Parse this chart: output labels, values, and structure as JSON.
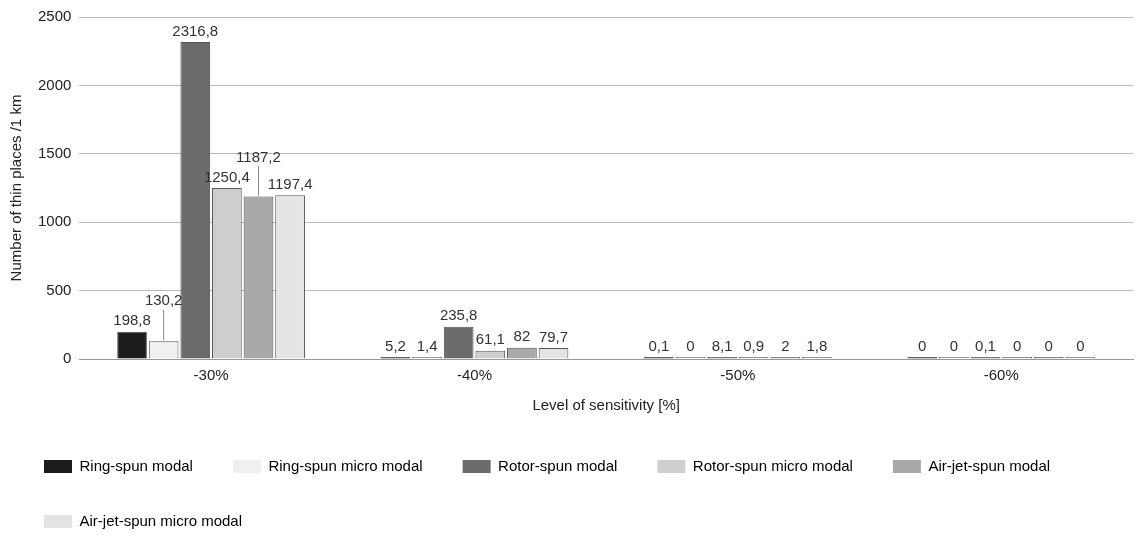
{
  "chart_data": {
    "type": "bar",
    "xlabel": "Level of sensitivity [%]",
    "ylabel": "Number of thin places /1 km",
    "categories": [
      "-30%",
      "-40%",
      "-50%",
      "-60%"
    ],
    "series": [
      {
        "name": "Ring-spun modal",
        "color": "#1c1c1c",
        "values": [
          198.8,
          5.2,
          0.1,
          0
        ],
        "value_labels": [
          "198,8",
          "5,2",
          "0,1",
          "0"
        ]
      },
      {
        "name": "Ring-spun micro modal",
        "color": "#f0f0f0",
        "values": [
          130.2,
          1.4,
          0,
          0
        ],
        "value_labels": [
          "130,2",
          "1,4",
          "0",
          "0"
        ]
      },
      {
        "name": "Rotor-spun modal",
        "color": "#6b6b6b",
        "values": [
          2316.8,
          235.8,
          8.1,
          0.1
        ],
        "value_labels": [
          "2316,8",
          "235,8",
          "8,1",
          "0,1"
        ]
      },
      {
        "name": "Rotor-spun micro modal",
        "color": "#cfcfcf",
        "values": [
          1250.4,
          61.1,
          0.9,
          0
        ],
        "value_labels": [
          "1250,4",
          "61,1",
          "0,9",
          "0"
        ]
      },
      {
        "name": "Air-jet-spun modal",
        "color": "#a9a9a9",
        "values": [
          1187.2,
          82,
          2,
          0
        ],
        "value_labels": [
          "1187,2",
          "82",
          "2",
          "0"
        ]
      },
      {
        "name": "Air-jet-spun micro modal",
        "color": "#e4e4e4",
        "values": [
          1197.4,
          79.7,
          1.8,
          0
        ],
        "value_labels": [
          "1197,4",
          "79,7",
          "1,8",
          "0"
        ]
      }
    ],
    "ylim": [
      0,
      2500
    ],
    "yticks": [
      0,
      500,
      1000,
      1500,
      2000,
      2500
    ],
    "grid": "y",
    "legend": "bottom"
  }
}
